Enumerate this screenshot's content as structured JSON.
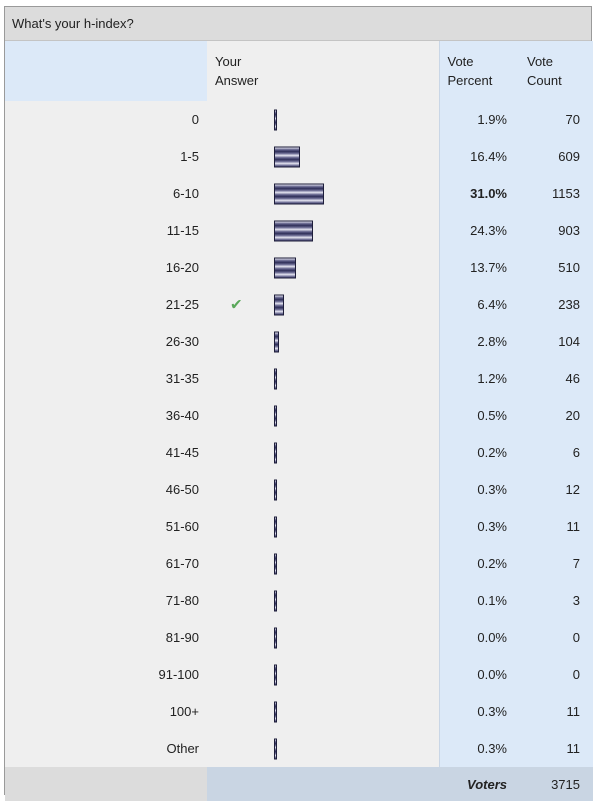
{
  "poll": {
    "title": "What's your h-index?",
    "headers": {
      "your_answer": "Your\nAnswer",
      "vote_percent": "Vote\nPercent",
      "vote_count": "Vote\nCount"
    },
    "rows": [
      {
        "label": "0",
        "percent": "1.9%",
        "count": "70",
        "bar_fraction": 0.019,
        "mine": false,
        "bold": false
      },
      {
        "label": "1-5",
        "percent": "16.4%",
        "count": "609",
        "bar_fraction": 0.164,
        "mine": false,
        "bold": false
      },
      {
        "label": "6-10",
        "percent": "31.0%",
        "count": "1153",
        "bar_fraction": 0.31,
        "mine": false,
        "bold": true
      },
      {
        "label": "11-15",
        "percent": "24.3%",
        "count": "903",
        "bar_fraction": 0.243,
        "mine": false,
        "bold": false
      },
      {
        "label": "16-20",
        "percent": "13.7%",
        "count": "510",
        "bar_fraction": 0.137,
        "mine": false,
        "bold": false
      },
      {
        "label": "21-25",
        "percent": "6.4%",
        "count": "238",
        "bar_fraction": 0.064,
        "mine": true,
        "bold": false
      },
      {
        "label": "26-30",
        "percent": "2.8%",
        "count": "104",
        "bar_fraction": 0.028,
        "mine": false,
        "bold": false
      },
      {
        "label": "31-35",
        "percent": "1.2%",
        "count": "46",
        "bar_fraction": 0.012,
        "mine": false,
        "bold": false
      },
      {
        "label": "36-40",
        "percent": "0.5%",
        "count": "20",
        "bar_fraction": 0.005,
        "mine": false,
        "bold": false
      },
      {
        "label": "41-45",
        "percent": "0.2%",
        "count": "6",
        "bar_fraction": 0.002,
        "mine": false,
        "bold": false
      },
      {
        "label": "46-50",
        "percent": "0.3%",
        "count": "12",
        "bar_fraction": 0.003,
        "mine": false,
        "bold": false
      },
      {
        "label": "51-60",
        "percent": "0.3%",
        "count": "11",
        "bar_fraction": 0.003,
        "mine": false,
        "bold": false
      },
      {
        "label": "61-70",
        "percent": "0.2%",
        "count": "7",
        "bar_fraction": 0.002,
        "mine": false,
        "bold": false
      },
      {
        "label": "71-80",
        "percent": "0.1%",
        "count": "3",
        "bar_fraction": 0.001,
        "mine": false,
        "bold": false
      },
      {
        "label": "81-90",
        "percent": "0.0%",
        "count": "0",
        "bar_fraction": 0.0,
        "mine": false,
        "bold": false
      },
      {
        "label": "91-100",
        "percent": "0.0%",
        "count": "0",
        "bar_fraction": 0.0,
        "mine": false,
        "bold": false
      },
      {
        "label": "100+",
        "percent": "0.3%",
        "count": "11",
        "bar_fraction": 0.003,
        "mine": false,
        "bold": false
      },
      {
        "label": "Other",
        "percent": "0.3%",
        "count": "11",
        "bar_fraction": 0.003,
        "mine": false,
        "bold": false
      }
    ],
    "footer": {
      "voters_label": "Voters",
      "voters_count": "3715"
    },
    "your_answer_icon": "checkmark-icon",
    "colors": {
      "header_blue": "#dce9f8",
      "bar_dark": "#2e2e58",
      "check_green": "#5aa85a"
    }
  }
}
